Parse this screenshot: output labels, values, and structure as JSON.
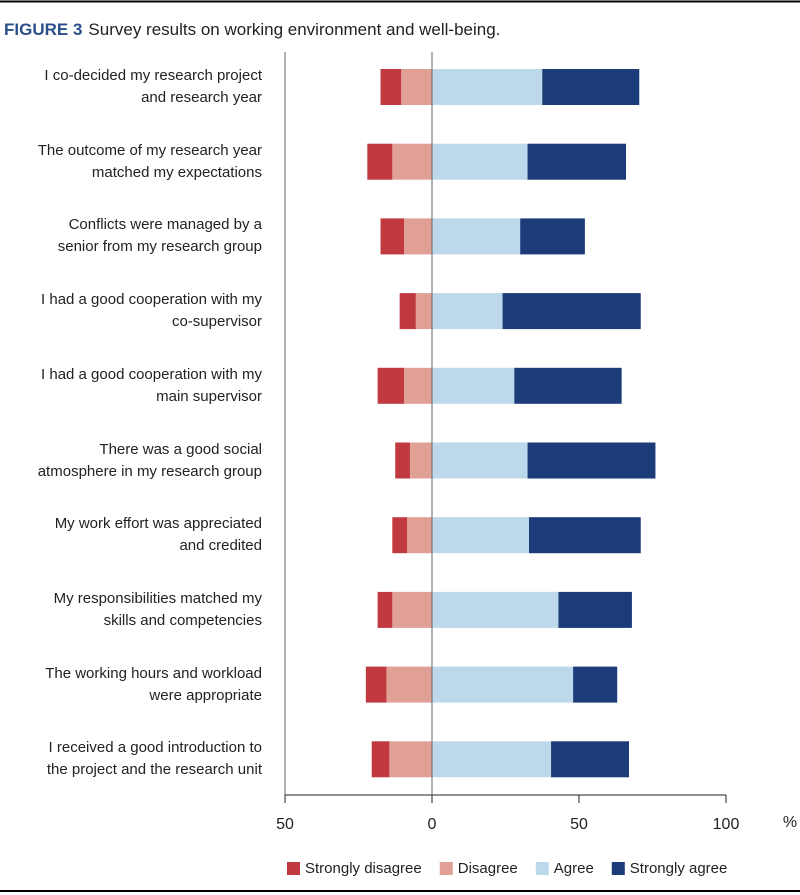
{
  "chart_data": {
    "type": "diverging-bar",
    "figure_label": "FIGURE 3",
    "title": "Survey results on working environment and well-being.",
    "categories": [
      "I co-decided my research project\nand research year",
      "The outcome of my research year\nmatched my expectations",
      "Conflicts were managed by a\nsenior from my research group",
      "I had a good cooperation with my\nco-supervisor",
      "I had a good cooperation with my\nmain supervisor",
      "There was a good social\natmosphere in my research group",
      "My work effort was appreciated\nand credited",
      "My responsibilities matched my\nskills and competencies",
      "The working hours and workload\nwere appropriate",
      "I received a good introduction to\nthe project and the research unit"
    ],
    "series": [
      {
        "name": "Strongly disagree",
        "color": "#c0393f",
        "values": [
          -7,
          -8.5,
          -8,
          -5.5,
          -9,
          -5,
          -5,
          -5,
          -7,
          -6
        ]
      },
      {
        "name": "Disagree",
        "color": "#e0a096",
        "values": [
          -10.5,
          -13.5,
          -9.5,
          -5.5,
          -9.5,
          -7.5,
          -8.5,
          -13.5,
          -15.5,
          -14.5
        ]
      },
      {
        "name": "Agree",
        "color": "#bcd8ea",
        "values": [
          37.5,
          32.5,
          30,
          24,
          28,
          32.5,
          33,
          43,
          48,
          40.5
        ]
      },
      {
        "name": "Strongly agree",
        "color": "#1b3c78",
        "values": [
          33,
          33.5,
          22,
          47,
          36.5,
          43.5,
          38,
          25,
          15,
          26.5
        ]
      }
    ],
    "xlim": [
      -50,
      100
    ],
    "xticks": [
      {
        "value": -50,
        "label": "50"
      },
      0,
      50,
      100
    ],
    "xlabel": "%"
  }
}
